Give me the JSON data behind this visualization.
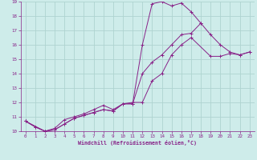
{
  "xlabel": "Windchill (Refroidissement éolien,°C)",
  "bg_color": "#ceecea",
  "grid_color": "#aed4d0",
  "line_color": "#882288",
  "xlim": [
    -0.5,
    23.5
  ],
  "ylim": [
    10,
    19
  ],
  "xticks": [
    0,
    1,
    2,
    3,
    4,
    5,
    6,
    7,
    8,
    9,
    10,
    11,
    12,
    13,
    14,
    15,
    16,
    17,
    18,
    19,
    20,
    21,
    22,
    23
  ],
  "yticks": [
    10,
    11,
    12,
    13,
    14,
    15,
    16,
    17,
    18,
    19
  ],
  "series": [
    {
      "x": [
        0,
        1,
        2,
        3,
        4,
        5,
        6,
        7,
        8,
        9,
        10,
        11,
        12,
        13,
        14,
        15,
        16,
        17,
        18
      ],
      "y": [
        10.7,
        10.3,
        10.0,
        10.1,
        10.5,
        10.9,
        11.1,
        11.3,
        11.5,
        11.4,
        11.9,
        11.9,
        16.0,
        18.85,
        19.0,
        18.7,
        18.9,
        18.3,
        17.5
      ]
    },
    {
      "x": [
        0,
        1,
        2,
        3,
        4,
        5,
        6,
        7,
        8,
        9,
        10,
        11,
        12,
        13,
        14,
        15,
        16,
        17,
        18,
        19,
        20,
        21,
        22,
        23
      ],
      "y": [
        10.7,
        10.3,
        10.0,
        10.1,
        10.5,
        10.9,
        11.1,
        11.3,
        11.5,
        11.4,
        11.9,
        11.9,
        14.0,
        14.8,
        15.3,
        16.0,
        16.7,
        16.8,
        17.5,
        16.7,
        16.0,
        15.5,
        15.3,
        15.5
      ]
    },
    {
      "x": [
        0,
        2,
        3,
        4,
        5,
        6,
        7,
        8,
        9,
        10,
        11,
        12,
        13,
        14,
        15,
        16,
        17,
        19,
        20,
        21,
        22,
        23
      ],
      "y": [
        10.7,
        10.0,
        10.2,
        10.8,
        11.0,
        11.2,
        11.5,
        11.8,
        11.5,
        11.9,
        12.0,
        12.0,
        13.5,
        14.0,
        15.3,
        16.0,
        16.5,
        15.2,
        15.2,
        15.4,
        15.3,
        15.5
      ]
    }
  ]
}
